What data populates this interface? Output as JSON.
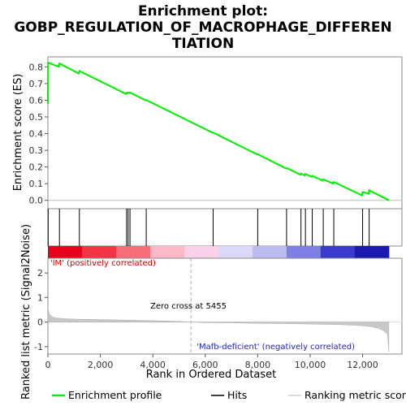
{
  "chart_data": {
    "type": "line",
    "title_lines": [
      "Enrichment plot:",
      "GOBP_REGULATION_OF_MACROPHAGE_DIFFEREN",
      "TIATION"
    ],
    "xlabel": "Rank in Ordered Dataset",
    "ylabel_top": "Enrichment score (ES)",
    "ylabel_bottom": "Ranked list metric (Signal2Noise)",
    "xlim": [
      0,
      13500
    ],
    "x_ticks": [
      0,
      2000,
      4000,
      6000,
      8000,
      10000,
      12000
    ],
    "x_tick_labels": [
      "0",
      "2,000",
      "4,000",
      "6,000",
      "8,000",
      "10,000",
      "12,000"
    ],
    "es_ylim": [
      -0.05,
      0.86
    ],
    "es_ticks": [
      0.0,
      0.1,
      0.2,
      0.3,
      0.4,
      0.5,
      0.6,
      0.7,
      0.8
    ],
    "es_tick_labels": [
      "0.0",
      "0.1",
      "0.2",
      "0.3",
      "0.4",
      "0.5",
      "0.6",
      "0.7",
      "0.8"
    ],
    "metric_ylim": [
      -1.3,
      2.6
    ],
    "metric_ticks": [
      -1,
      0,
      1,
      2
    ],
    "metric_tick_labels": [
      "-1",
      "0",
      "1",
      "2"
    ],
    "hits": [
      10,
      440,
      1200,
      3000,
      3060,
      3130,
      3750,
      6300,
      8000,
      9100,
      9650,
      9820,
      10080,
      10500,
      10900,
      12000,
      12250
    ],
    "series": [
      {
        "name": "Enrichment profile",
        "color": "#00ee00",
        "x": [
          0,
          10,
          420,
          440,
          1180,
          1200,
          2980,
          3000,
          3040,
          3060,
          3110,
          3130,
          3730,
          3750,
          6280,
          6300,
          7980,
          8000,
          9080,
          9100,
          9630,
          9650,
          9800,
          9820,
          10060,
          10080,
          10480,
          10500,
          10880,
          10900,
          11980,
          12000,
          12230,
          12250,
          13000
        ],
        "y": [
          0.58,
          0.825,
          0.8,
          0.82,
          0.76,
          0.775,
          0.637,
          0.645,
          0.643,
          0.646,
          0.643,
          0.646,
          0.599,
          0.601,
          0.405,
          0.406,
          0.275,
          0.276,
          0.191,
          0.194,
          0.153,
          0.16,
          0.149,
          0.158,
          0.141,
          0.147,
          0.118,
          0.126,
          0.1,
          0.11,
          0.03,
          0.05,
          0.04,
          0.06,
          0.0
        ]
      }
    ],
    "metric_profile": {
      "x": [
        0,
        50,
        150,
        300,
        600,
        1000,
        2000,
        3000,
        4000,
        5000,
        5455,
        6000,
        7000,
        8000,
        9000,
        10000,
        11000,
        11800,
        12300,
        12600,
        12800,
        12950,
        13000
      ],
      "y": [
        0.6,
        0.35,
        0.22,
        0.17,
        0.14,
        0.12,
        0.1,
        0.08,
        0.06,
        0.03,
        0.0,
        -0.02,
        -0.03,
        -0.05,
        -0.06,
        -0.08,
        -0.1,
        -0.13,
        -0.18,
        -0.25,
        -0.35,
        -0.5,
        -1.2
      ]
    },
    "heatmap_colors": [
      "#e8001c",
      "#f23546",
      "#f76d78",
      "#fbb9c8",
      "#f9d2ea",
      "#dcd8f7",
      "#bcbcf0",
      "#7f7fe6",
      "#3a3acc",
      "#1a1ab0"
    ],
    "pos_label": "'lM' (positively correlated)",
    "neg_label": "'Mafb-deficient' (negatively correlated)",
    "zero_cross_label": "Zero cross at 5455",
    "zero_cross": 5455,
    "legend": [
      {
        "label": "Enrichment profile",
        "color": "#00ee00",
        "kind": "line"
      },
      {
        "label": "Hits",
        "color": "#000000",
        "kind": "line"
      },
      {
        "label": "Ranking metric scores",
        "color": "#cccccc",
        "kind": "line"
      }
    ],
    "pos_label_color": "#cc0000",
    "neg_label_color": "#2222bb"
  }
}
